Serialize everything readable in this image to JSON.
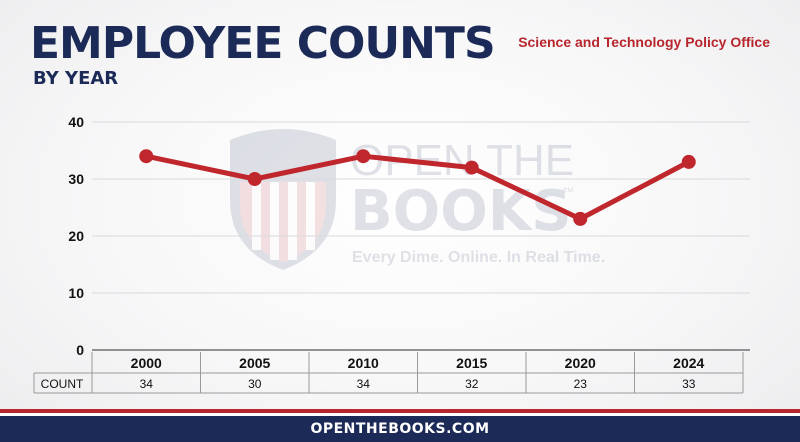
{
  "header": {
    "title": "EMPLOYEE COUNTS",
    "subtitle": "BY YEAR",
    "agency": "Science and Technology Policy Office"
  },
  "watermark": {
    "brand_line1": "OPEN THE",
    "brand_line2": "BOOKS",
    "trademark": "™",
    "tagline": "Every Dime. Online. In Real Time."
  },
  "footer": {
    "text": "OPENTHEBOOKS.COM"
  },
  "colors": {
    "navy": "#1c2a57",
    "red": "#b8262d",
    "line": "#c0272d"
  },
  "chart_data": {
    "type": "line",
    "categories": [
      "2000",
      "2005",
      "2010",
      "2015",
      "2020",
      "2024"
    ],
    "values": [
      34,
      30,
      34,
      32,
      23,
      33
    ],
    "ylim": [
      0,
      40
    ],
    "yticks": [
      0,
      10,
      20,
      30,
      40
    ],
    "grid": true,
    "table_row_label": "COUNT",
    "title": "EMPLOYEE COUNTS",
    "subtitle": "BY YEAR"
  }
}
